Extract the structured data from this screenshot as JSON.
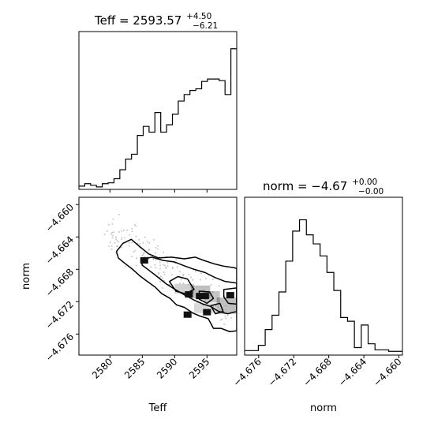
{
  "chart_data": [
    {
      "panel": "Teff marginal histogram",
      "type": "histogram-step",
      "title": {
        "main": "Teff = 2593.57",
        "sup": "+4.50",
        "sub": "−6.21"
      },
      "xlim": [
        2575.2,
        2599.6
      ],
      "ylim": [
        0,
        193
      ],
      "x_ticks": [
        2580,
        2585,
        2590,
        2595
      ],
      "values": [
        4,
        7,
        5,
        3,
        7,
        8,
        13,
        24,
        37,
        43,
        66,
        77,
        70,
        94,
        70,
        79,
        92,
        108,
        116,
        121,
        123,
        132,
        135,
        135,
        133,
        116,
        172
      ],
      "color": "#000000"
    },
    {
      "panel": "2D joint distribution",
      "type": "contour-scatter",
      "xlabel": "Teff",
      "ylabel": "norm",
      "xlim": [
        2575.2,
        2599.6
      ],
      "ylim": [
        -4.6786,
        -4.6591
      ],
      "x_ticks": [
        "2580",
        "2585",
        "2590",
        "2595"
      ],
      "x_tick_values": [
        2580,
        2585,
        2590,
        2595
      ],
      "y_ticks": [
        "−4.660",
        "−4.664",
        "−4.668",
        "−4.672",
        "−4.676"
      ],
      "y_tick_values": [
        -4.66,
        -4.664,
        -4.668,
        -4.672,
        -4.676
      ],
      "contours": [
        [
          [
            2581,
            -4.6658
          ],
          [
            2582,
            -4.6648
          ],
          [
            2583.3,
            -4.6643
          ],
          [
            2584.6,
            -4.6652
          ],
          [
            2586,
            -4.6661
          ],
          [
            2587.5,
            -4.6666
          ],
          [
            2589.5,
            -4.6665
          ],
          [
            2591.5,
            -4.6667
          ],
          [
            2593.2,
            -4.6665
          ],
          [
            2594.5,
            -4.6669
          ],
          [
            2596,
            -4.6673
          ],
          [
            2597.5,
            -4.6676
          ],
          [
            2599.2,
            -4.6678
          ],
          [
            2599.6,
            -4.6679
          ],
          [
            2599.6,
            -4.6756
          ],
          [
            2598.5,
            -4.6757
          ],
          [
            2597.2,
            -4.6753
          ],
          [
            2596,
            -4.6753
          ],
          [
            2595.2,
            -4.6741
          ],
          [
            2594,
            -4.6738
          ],
          [
            2592.8,
            -4.6734
          ],
          [
            2591.5,
            -4.6727
          ],
          [
            2590.3,
            -4.6724
          ],
          [
            2589.3,
            -4.6716
          ],
          [
            2588,
            -4.671
          ],
          [
            2587,
            -4.6702
          ],
          [
            2585.6,
            -4.6694
          ],
          [
            2584.6,
            -4.6688
          ],
          [
            2583.5,
            -4.668
          ],
          [
            2582.2,
            -4.6672
          ],
          [
            2581.3,
            -4.6666
          ],
          [
            2581,
            -4.6658
          ]
        ],
        [
          [
            2584.8,
            -4.6668
          ],
          [
            2586.5,
            -4.6665
          ],
          [
            2588.2,
            -4.6669
          ],
          [
            2590,
            -4.6671
          ],
          [
            2591.6,
            -4.6676
          ],
          [
            2593,
            -4.668
          ],
          [
            2594.7,
            -4.6684
          ],
          [
            2596.2,
            -4.669
          ],
          [
            2597.8,
            -4.6695
          ],
          [
            2599.6,
            -4.6697
          ],
          [
            2599.6,
            -4.6732
          ],
          [
            2598.2,
            -4.6735
          ],
          [
            2596.8,
            -4.6732
          ],
          [
            2595.6,
            -4.6726
          ],
          [
            2594.4,
            -4.6723
          ],
          [
            2593,
            -4.6718
          ],
          [
            2591.6,
            -4.6712
          ],
          [
            2590.3,
            -4.6706
          ],
          [
            2588.7,
            -4.6698
          ],
          [
            2587.3,
            -4.6689
          ],
          [
            2586,
            -4.6681
          ],
          [
            2585,
            -4.6675
          ],
          [
            2584.8,
            -4.6668
          ]
        ],
        [
          [
            2589.2,
            -4.6695
          ],
          [
            2590.5,
            -4.6689
          ],
          [
            2592,
            -4.6692
          ],
          [
            2593,
            -4.6705
          ],
          [
            2591.6,
            -4.671
          ],
          [
            2590.2,
            -4.6707
          ],
          [
            2589.2,
            -4.6695
          ]
        ],
        [
          [
            2593.8,
            -4.6707
          ],
          [
            2595.4,
            -4.6708
          ],
          [
            2596,
            -4.6716
          ],
          [
            2595,
            -4.6722
          ],
          [
            2593.8,
            -4.6717
          ],
          [
            2593.8,
            -4.6707
          ]
        ],
        [
          [
            2597.6,
            -4.6705
          ],
          [
            2599.6,
            -4.6703
          ],
          [
            2599.6,
            -4.6723
          ],
          [
            2598.3,
            -4.6722
          ],
          [
            2597.6,
            -4.6714
          ],
          [
            2597.6,
            -4.6705
          ]
        ],
        [
          [
            2595.6,
            -4.6725
          ],
          [
            2597,
            -4.6722
          ],
          [
            2597.5,
            -4.6732
          ],
          [
            2596.3,
            -4.6735
          ],
          [
            2595.6,
            -4.6725
          ]
        ]
      ],
      "dense_blobs": [
        {
          "x": 2585.3,
          "y": -4.6669
        },
        {
          "x": 2592.2,
          "y": -4.6711
        },
        {
          "x": 2593.9,
          "y": -4.6713
        },
        {
          "x": 2592.0,
          "y": -4.6736
        },
        {
          "x": 2594.7,
          "y": -4.6713
        },
        {
          "x": 2595.0,
          "y": -4.6733
        },
        {
          "x": 2598.6,
          "y": -4.6712
        }
      ],
      "shade_regions": [
        {
          "x": 2590.0,
          "y": -4.6698,
          "w": 3.0,
          "h": 0.0012,
          "opacity": 0.35
        },
        {
          "x": 2592.5,
          "y": -4.67,
          "w": 3.0,
          "h": 0.0016,
          "opacity": 0.5
        },
        {
          "x": 2594.5,
          "y": -4.6707,
          "w": 2.5,
          "h": 0.0014,
          "opacity": 0.45
        },
        {
          "x": 2596.5,
          "y": -4.6715,
          "w": 3.1,
          "h": 0.002,
          "opacity": 0.5
        },
        {
          "x": 2593.0,
          "y": -4.6722,
          "w": 3.5,
          "h": 0.0012,
          "opacity": 0.3
        }
      ]
    },
    {
      "panel": "norm marginal histogram",
      "type": "histogram-step",
      "title": {
        "main": "norm = −4.67",
        "sup": "+0.00",
        "sub": "−0.00"
      },
      "xlabel": "norm",
      "xlim": [
        -4.6776,
        -4.6596
      ],
      "ylim": [
        0,
        210
      ],
      "x_ticks": [
        "−4.676",
        "−4.672",
        "−4.668",
        "−4.664",
        "−4.660"
      ],
      "x_tick_values": [
        -4.676,
        -4.672,
        -4.668,
        -4.664,
        -4.66
      ],
      "values": [
        6,
        6,
        13,
        34,
        53,
        84,
        125,
        165,
        180,
        160,
        148,
        132,
        110,
        86,
        50,
        45,
        10,
        40,
        15,
        7,
        7,
        5,
        5
      ],
      "color": "#000000"
    }
  ]
}
